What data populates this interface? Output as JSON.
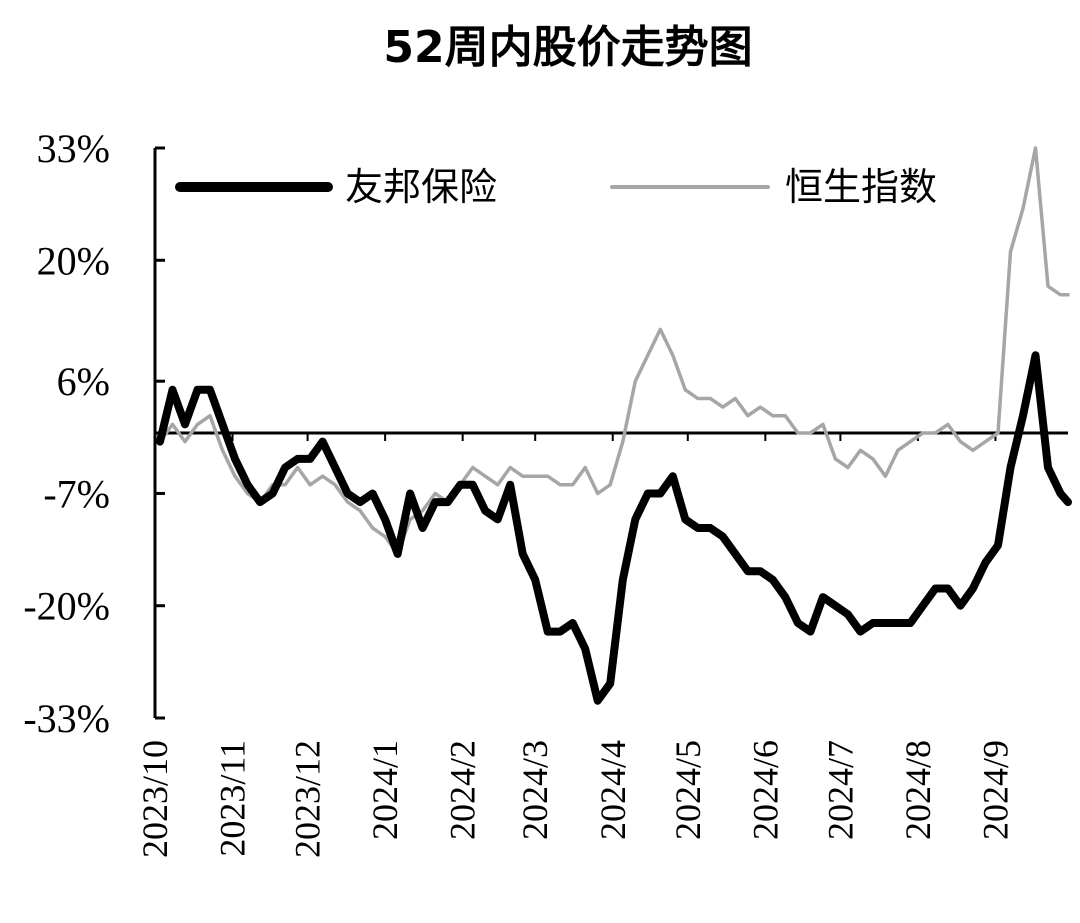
{
  "colors": {
    "series_1": "#000000",
    "series_2": "#a6a6a6",
    "axis": "#000000"
  },
  "chart_data": {
    "type": "line",
    "title": "52周内股价走势图",
    "xlabel": "",
    "ylabel": "",
    "legend_position": "top",
    "grid": false,
    "x_tick_labels": [
      "2023/10",
      "2023/11",
      "2023/12",
      "2024/1",
      "2024/2",
      "2024/3",
      "2024/4",
      "2024/5",
      "2024/6",
      "2024/7",
      "2024/8",
      "2024/9"
    ],
    "y_tick_labels": [
      "33%",
      "20%",
      "6%",
      "-7%",
      "-20%",
      "-33%"
    ],
    "y_tick_values": [
      33,
      20,
      6,
      -7,
      -20,
      -33
    ],
    "ylim": [
      -33,
      33
    ],
    "baseline": 0,
    "x": [
      "2023-10-03",
      "2023-10-08",
      "2023-10-13",
      "2023-10-18",
      "2023-10-23",
      "2023-10-28",
      "2023-11-02",
      "2023-11-07",
      "2023-11-12",
      "2023-11-17",
      "2023-11-22",
      "2023-11-27",
      "2023-12-02",
      "2023-12-07",
      "2023-12-12",
      "2023-12-17",
      "2023-12-22",
      "2023-12-27",
      "2024-01-01",
      "2024-01-06",
      "2024-01-11",
      "2024-01-16",
      "2024-01-21",
      "2024-01-26",
      "2024-01-31",
      "2024-02-05",
      "2024-02-10",
      "2024-02-15",
      "2024-02-20",
      "2024-02-25",
      "2024-03-01",
      "2024-03-06",
      "2024-03-11",
      "2024-03-16",
      "2024-03-21",
      "2024-03-26",
      "2024-03-31",
      "2024-04-05",
      "2024-04-10",
      "2024-04-15",
      "2024-04-20",
      "2024-04-25",
      "2024-04-30",
      "2024-05-05",
      "2024-05-10",
      "2024-05-15",
      "2024-05-20",
      "2024-05-25",
      "2024-05-30",
      "2024-06-04",
      "2024-06-09",
      "2024-06-14",
      "2024-06-19",
      "2024-06-24",
      "2024-06-29",
      "2024-07-04",
      "2024-07-09",
      "2024-07-14",
      "2024-07-19",
      "2024-07-24",
      "2024-07-29",
      "2024-08-03",
      "2024-08-08",
      "2024-08-13",
      "2024-08-18",
      "2024-08-23",
      "2024-08-28",
      "2024-09-02",
      "2024-09-07",
      "2024-09-12",
      "2024-09-17",
      "2024-09-22",
      "2024-09-27",
      "2024-09-30"
    ],
    "series": [
      {
        "name": "友邦保险",
        "values": [
          -1,
          5,
          1,
          5,
          5,
          1,
          -3,
          -6,
          -8,
          -7,
          -4,
          -3,
          -3,
          -1,
          -4,
          -7,
          -8,
          -7,
          -10,
          -14,
          -7,
          -11,
          -8,
          -8,
          -6,
          -6,
          -9,
          -10,
          -6,
          -14,
          -17,
          -23,
          -23,
          -22,
          -25,
          -31,
          -29,
          -17,
          -10,
          -7,
          -7,
          -5,
          -10,
          -11,
          -11,
          -12,
          -14,
          -16,
          -16,
          -17,
          -19,
          -22,
          -23,
          -19,
          -20,
          -21,
          -23,
          -22,
          -22,
          -22,
          -22,
          -20,
          -18,
          -18,
          -20,
          -18,
          -15,
          -13,
          -4,
          2,
          9,
          -4,
          -7,
          -8
        ]
      },
      {
        "name": "恒生指数",
        "values": [
          -1,
          1,
          -1,
          1,
          2,
          -2,
          -5,
          -7,
          -8,
          -6,
          -6,
          -4,
          -6,
          -5,
          -6,
          -8,
          -9,
          -11,
          -12,
          -14,
          -10,
          -9,
          -7,
          -8,
          -6,
          -4,
          -5,
          -6,
          -4,
          -5,
          -5,
          -5,
          -6,
          -6,
          -4,
          -7,
          -6,
          -1,
          6,
          9,
          12,
          9,
          5,
          4,
          4,
          3,
          4,
          2,
          3,
          2,
          2,
          0,
          0,
          1,
          -3,
          -4,
          -2,
          -3,
          -5,
          -2,
          -1,
          0,
          0,
          1,
          -1,
          -2,
          -1,
          0,
          21,
          26,
          33,
          17,
          16,
          16
        ]
      }
    ]
  }
}
